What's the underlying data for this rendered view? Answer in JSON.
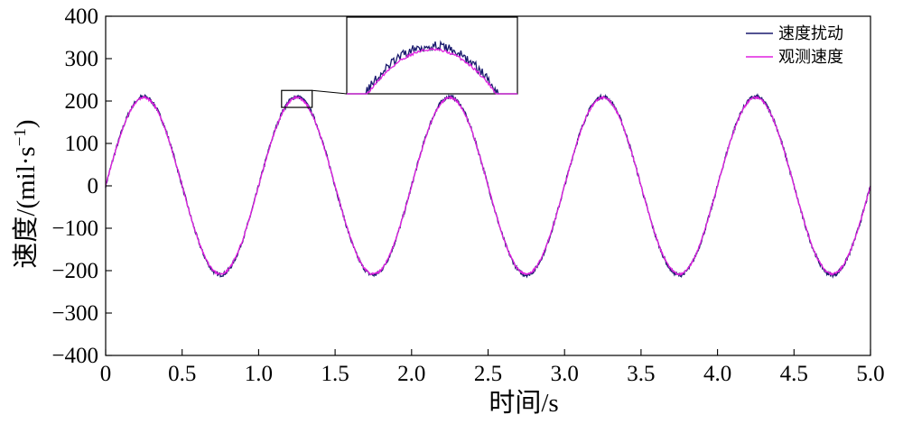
{
  "chart_data": {
    "type": "line",
    "title": "",
    "xlabel": "时间/s",
    "ylabel": "速度/(mil·s",
    "ylabel_sup": "−1",
    "ylabel_close": ")",
    "xlim": [
      0,
      5.0
    ],
    "ylim": [
      -400,
      400
    ],
    "xticks": [
      0,
      0.5,
      1.0,
      1.5,
      2.0,
      2.5,
      3.0,
      3.5,
      4.0,
      4.5,
      5.0
    ],
    "xtick_labels": [
      "0",
      "0.5",
      "1.0",
      "1.5",
      "2.0",
      "2.5",
      "3.0",
      "3.5",
      "4.0",
      "4.5",
      "5.0"
    ],
    "yticks": [
      -400,
      -300,
      -200,
      -100,
      0,
      100,
      200,
      300,
      400
    ],
    "ytick_labels": [
      "−400",
      "−300",
      "−200",
      "−100",
      "0",
      "100",
      "200",
      "300",
      "400"
    ],
    "grid": false,
    "legend_position": "top-right",
    "amplitude": 210,
    "frequency_hz": 1.0,
    "x": [
      0,
      0.25,
      0.5,
      0.75,
      1.0,
      1.25,
      1.5,
      1.75,
      2.0,
      2.25,
      2.5,
      2.75,
      3.0,
      3.25,
      3.5,
      3.75,
      4.0,
      4.25,
      4.5,
      4.75,
      5.0
    ],
    "series": [
      {
        "name": "速度扰动",
        "color": "#1a1a6e",
        "values": [
          0,
          210,
          0,
          -210,
          0,
          210,
          0,
          -210,
          0,
          210,
          0,
          -210,
          0,
          210,
          0,
          -210,
          0,
          210,
          0,
          -210,
          0
        ]
      },
      {
        "name": "观测速度",
        "color": "#e020e0",
        "values": [
          0,
          208,
          0,
          -208,
          0,
          208,
          0,
          -208,
          0,
          208,
          0,
          -208,
          0,
          208,
          0,
          -208,
          0,
          208,
          0,
          -208,
          0
        ]
      }
    ],
    "inset": {
      "xlim": [
        1.15,
        1.35
      ],
      "ylim": [
        185,
        225
      ]
    }
  }
}
